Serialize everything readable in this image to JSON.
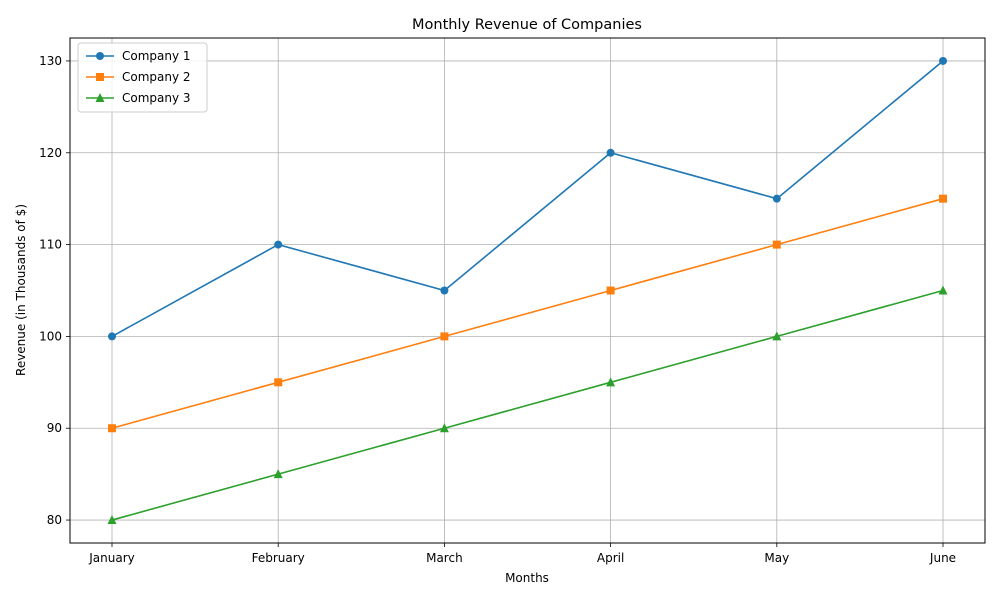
{
  "chart_data": {
    "type": "line",
    "title": "Monthly Revenue of Companies",
    "xlabel": "Months",
    "ylabel": "Revenue (in Thousands of $)",
    "categories": [
      "January",
      "February",
      "March",
      "April",
      "May",
      "June"
    ],
    "ylim": [
      77.5,
      132.5
    ],
    "yticks": [
      80,
      90,
      100,
      110,
      120,
      130
    ],
    "grid": true,
    "legend_position": "top-left",
    "series": [
      {
        "name": "Company 1",
        "values": [
          100,
          110,
          105,
          120,
          115,
          130
        ],
        "color": "#1f77b4",
        "marker": "circle"
      },
      {
        "name": "Company 2",
        "values": [
          90,
          95,
          100,
          105,
          110,
          115
        ],
        "color": "#ff7f0e",
        "marker": "square"
      },
      {
        "name": "Company 3",
        "values": [
          80,
          85,
          90,
          95,
          100,
          105
        ],
        "color": "#2ca02c",
        "marker": "triangle"
      }
    ]
  }
}
